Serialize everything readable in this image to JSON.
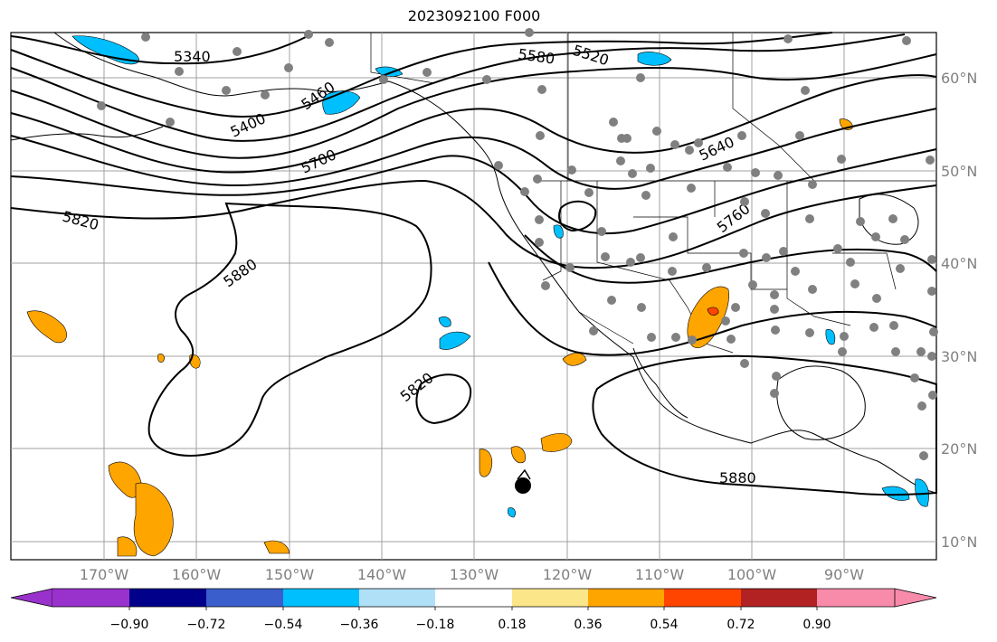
{
  "title": "2023092100 F000",
  "map": {
    "lon_ticks": [
      "170°W",
      "160°W",
      "150°W",
      "140°W",
      "130°W",
      "120°W",
      "110°W",
      "100°W",
      "90°W"
    ],
    "lat_ticks": [
      "60°N",
      "50°N",
      "40°N",
      "30°N",
      "20°N",
      "10°N"
    ],
    "contour_labels": [
      "5340",
      "5400",
      "5460",
      "5520",
      "5580",
      "5640",
      "5700",
      "5760",
      "5820",
      "5820",
      "5880",
      "5880"
    ],
    "marker": "storm-center"
  },
  "colorbar": {
    "ticks": [
      "−0.90",
      "−0.72",
      "−0.54",
      "−0.36",
      "−0.18",
      "0.18",
      "0.36",
      "0.54",
      "0.72",
      "0.90"
    ],
    "colors": [
      "#9932cc",
      "#00008b",
      "#3a5fcd",
      "#00bfff",
      "#b0e0f8",
      "#ffffff",
      "#fce68a",
      "#ffa500",
      "#ff4500",
      "#b22222",
      "#f88aaa"
    ]
  }
}
